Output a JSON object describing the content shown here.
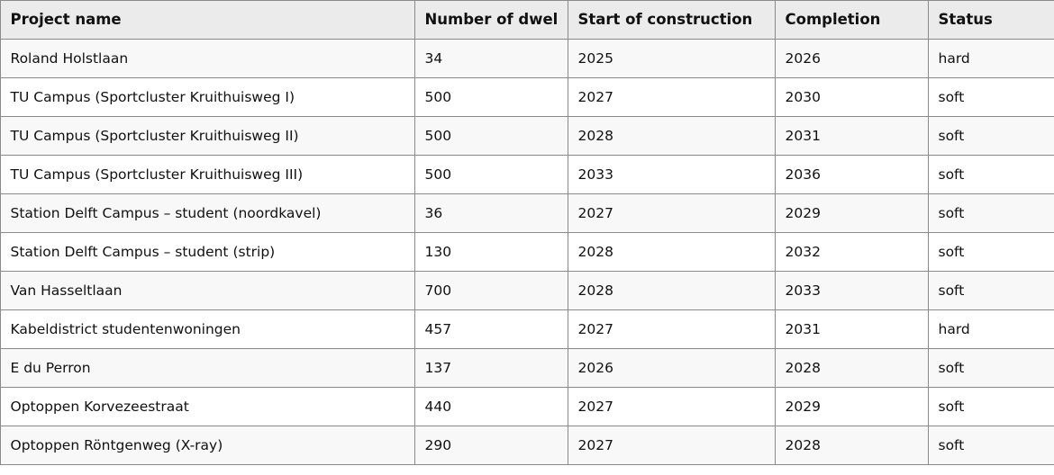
{
  "table": {
    "columns": [
      "Project name",
      "Number of dwel",
      "Start of construction",
      "Completion",
      "Status"
    ],
    "rows": [
      [
        "Roland Holstlaan",
        "34",
        "2025",
        "2026",
        "hard"
      ],
      [
        "TU Campus (Sportcluster Kruithuisweg I)",
        "500",
        "2027",
        "2030",
        "soft"
      ],
      [
        "TU Campus (Sportcluster Kruithuisweg II)",
        "500",
        "2028",
        "2031",
        "soft"
      ],
      [
        "TU Campus (Sportcluster Kruithuisweg III)",
        "500",
        "2033",
        "2036",
        "soft"
      ],
      [
        "Station Delft Campus – student (noordkavel)",
        "36",
        "2027",
        "2029",
        "soft"
      ],
      [
        "Station Delft Campus – student (strip)",
        "130",
        "2028",
        "2032",
        "soft"
      ],
      [
        "Van Hasseltlaan",
        "700",
        "2028",
        "2033",
        "soft"
      ],
      [
        "Kabeldistrict studentenwoningen",
        "457",
        "2027",
        "2031",
        "hard"
      ],
      [
        "E du Perron",
        "137",
        "2026",
        "2028",
        "soft"
      ],
      [
        "Optoppen Korvezeestraat",
        "440",
        "2027",
        "2029",
        "soft"
      ],
      [
        "Optoppen Röntgenweg (X-ray)",
        "290",
        "2027",
        "2028",
        "soft"
      ]
    ]
  }
}
